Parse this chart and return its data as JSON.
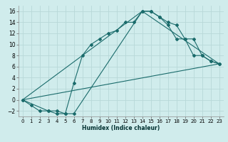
{
  "xlabel": "Humidex (Indice chaleur)",
  "bg_color": "#d0ecec",
  "grid_color": "#b8d8d8",
  "line_color": "#1a6b6b",
  "xlim": [
    -0.5,
    23.5
  ],
  "ylim": [
    -3.0,
    17.0
  ],
  "xticks": [
    0,
    1,
    2,
    3,
    4,
    5,
    6,
    7,
    8,
    9,
    10,
    11,
    12,
    13,
    14,
    15,
    16,
    17,
    18,
    19,
    20,
    21,
    22,
    23
  ],
  "yticks": [
    -2,
    0,
    2,
    4,
    6,
    8,
    10,
    12,
    14,
    16
  ],
  "curve1_x": [
    0,
    1,
    2,
    3,
    4,
    5,
    6,
    7,
    8,
    9,
    10,
    11,
    12,
    13,
    14,
    15,
    16,
    17,
    18,
    19,
    20,
    21,
    22,
    23
  ],
  "curve1_y": [
    0,
    -1,
    -2,
    -2,
    -2.5,
    -2.5,
    3,
    8,
    10,
    11,
    12,
    12.5,
    14,
    14,
    16,
    16,
    15,
    13.5,
    11,
    11,
    8,
    8,
    7,
    6.5
  ],
  "curve2_x": [
    0,
    3,
    4,
    5,
    6,
    14,
    15,
    16,
    17,
    18,
    19,
    20,
    21,
    22,
    23
  ],
  "curve2_y": [
    0,
    -2,
    -2,
    -2.5,
    -2.5,
    16,
    16,
    15,
    14,
    13.5,
    11,
    11,
    8,
    7,
    6.5
  ],
  "curve3_x": [
    0,
    23
  ],
  "curve3_y": [
    0,
    6.5
  ],
  "curve4_x": [
    0,
    14,
    23
  ],
  "curve4_y": [
    0,
    16,
    6.5
  ]
}
